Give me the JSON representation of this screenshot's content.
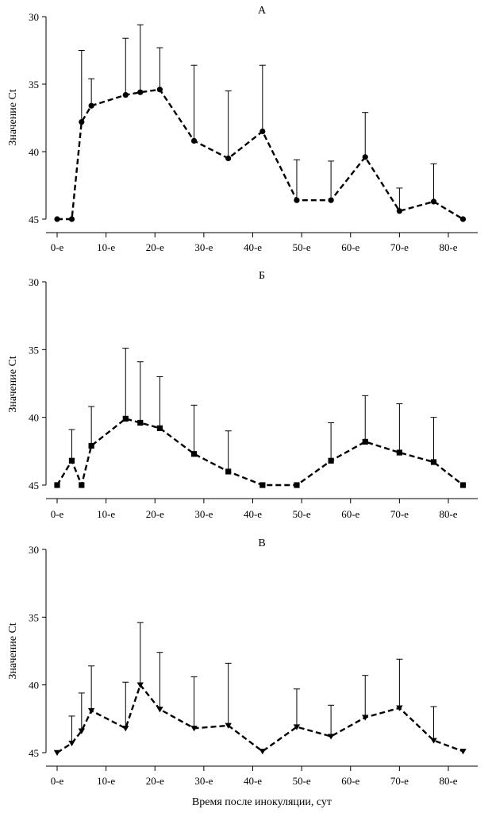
{
  "xlabel": "Время после инокуляции, сут",
  "chart_data": [
    {
      "type": "line",
      "title": "А",
      "ylabel": "Значение Ct",
      "ylim": [
        45,
        30
      ],
      "y_inverted": true,
      "yticks": [
        30,
        35,
        40,
        45
      ],
      "xlim": [
        -1.5,
        86
      ],
      "xticks": [
        0,
        10,
        20,
        30,
        40,
        50,
        60,
        70,
        80
      ],
      "xtick_labels": [
        "0-е",
        "10-е",
        "20-е",
        "30-е",
        "40-е",
        "50-е",
        "60-е",
        "70-е",
        "80-е"
      ],
      "marker": "circle",
      "series": [
        {
          "name": "А",
          "x": [
            0,
            3,
            5,
            7,
            14,
            17,
            21,
            28,
            35,
            42,
            49,
            56,
            63,
            70,
            77,
            83
          ],
          "y": [
            45,
            45,
            37.8,
            36.6,
            35.8,
            35.6,
            35.4,
            39.2,
            40.5,
            38.5,
            43.6,
            43.6,
            40.4,
            44.4,
            43.7,
            45
          ],
          "error_upper": [
            45,
            45,
            32.5,
            34.6,
            31.6,
            30.6,
            32.3,
            33.6,
            35.5,
            33.6,
            40.6,
            40.7,
            37.1,
            42.7,
            40.9,
            45
          ]
        }
      ]
    },
    {
      "type": "line",
      "title": "Б",
      "ylabel": "Значение Ct",
      "ylim": [
        45,
        30
      ],
      "y_inverted": true,
      "yticks": [
        30,
        35,
        40,
        45
      ],
      "xlim": [
        -1.5,
        86
      ],
      "xticks": [
        0,
        10,
        20,
        30,
        40,
        50,
        60,
        70,
        80
      ],
      "xtick_labels": [
        "0-е",
        "10-е",
        "20-е",
        "30-е",
        "40-е",
        "50-е",
        "60-е",
        "70-е",
        "80-е"
      ],
      "marker": "square",
      "series": [
        {
          "name": "Б",
          "x": [
            0,
            3,
            5,
            7,
            14,
            17,
            21,
            28,
            35,
            42,
            49,
            56,
            63,
            70,
            77,
            83
          ],
          "y": [
            45,
            43.2,
            45,
            42.1,
            40.1,
            40.4,
            40.8,
            42.7,
            44,
            45,
            45,
            43.2,
            41.8,
            42.6,
            43.3,
            45
          ],
          "error_upper": [
            45,
            40.9,
            45,
            39.2,
            34.9,
            35.9,
            37,
            39.1,
            41,
            45,
            45,
            40.4,
            38.4,
            39,
            40,
            45
          ]
        }
      ]
    },
    {
      "type": "line",
      "title": "В",
      "ylabel": "Значение Ct",
      "ylim": [
        45,
        30
      ],
      "y_inverted": true,
      "yticks": [
        30,
        35,
        40,
        45
      ],
      "xlim": [
        -1.5,
        86
      ],
      "xticks": [
        0,
        10,
        20,
        30,
        40,
        50,
        60,
        70,
        80
      ],
      "xtick_labels": [
        "0-е",
        "10-е",
        "20-е",
        "30-е",
        "40-е",
        "50-е",
        "60-е",
        "70-е",
        "80-е"
      ],
      "marker": "triangle-down",
      "series": [
        {
          "name": "В",
          "x": [
            0,
            3,
            5,
            7,
            14,
            17,
            21,
            28,
            35,
            42,
            49,
            56,
            63,
            70,
            77,
            83
          ],
          "y": [
            45,
            44.3,
            43.4,
            41.9,
            43.2,
            40,
            41.8,
            43.2,
            43,
            44.9,
            43.1,
            43.8,
            42.4,
            41.7,
            44.1,
            44.9
          ],
          "error_upper": [
            45,
            42.3,
            40.6,
            38.6,
            39.8,
            35.4,
            37.6,
            39.4,
            38.4,
            44.9,
            40.3,
            41.5,
            39.3,
            38.1,
            41.6,
            44.9
          ]
        }
      ]
    }
  ]
}
